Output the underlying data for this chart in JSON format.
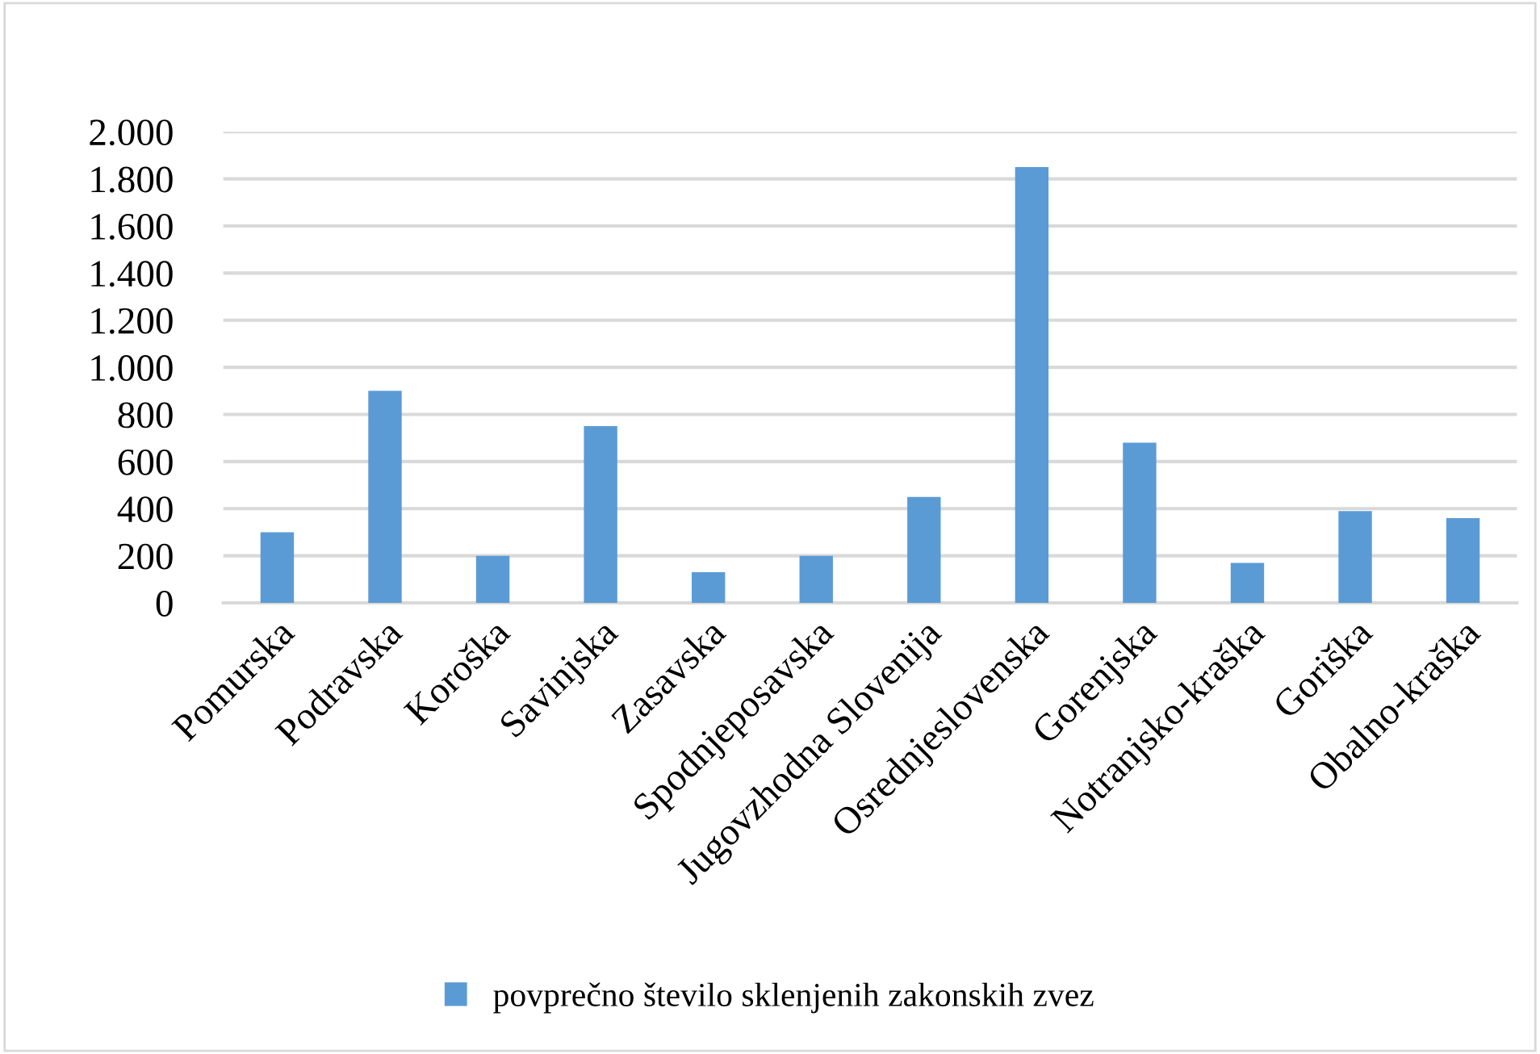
{
  "chart_data": {
    "type": "bar",
    "categories": [
      "Pomurska",
      "Podravska",
      "Koroška",
      "Savinjska",
      "Zasavska",
      "Spodnjeposavska",
      "Jugovzhodna Slovenija",
      "Osrednjeslovenska",
      "Gorenjska",
      "Notranjsko-kraška",
      "Goriška",
      "Obalno-kraška"
    ],
    "series": [
      {
        "name": "povprečno število sklenjenih zakonskih zvez",
        "color": "#5b9bd5",
        "values": [
          300,
          900,
          200,
          750,
          130,
          200,
          450,
          1850,
          680,
          170,
          390,
          360
        ]
      }
    ],
    "ylim": [
      0,
      2000
    ],
    "yticks": [
      {
        "value": 0,
        "label": "0"
      },
      {
        "value": 200,
        "label": "200"
      },
      {
        "value": 400,
        "label": "400"
      },
      {
        "value": 600,
        "label": "600"
      },
      {
        "value": 800,
        "label": "800"
      },
      {
        "value": 1000,
        "label": "1.000"
      },
      {
        "value": 1200,
        "label": "1.200"
      },
      {
        "value": 1400,
        "label": "1.400"
      },
      {
        "value": 1600,
        "label": "1.600"
      },
      {
        "value": 1800,
        "label": "1.800"
      },
      {
        "value": 2000,
        "label": "2.000"
      }
    ],
    "grid": "y",
    "legend": "bottom"
  }
}
